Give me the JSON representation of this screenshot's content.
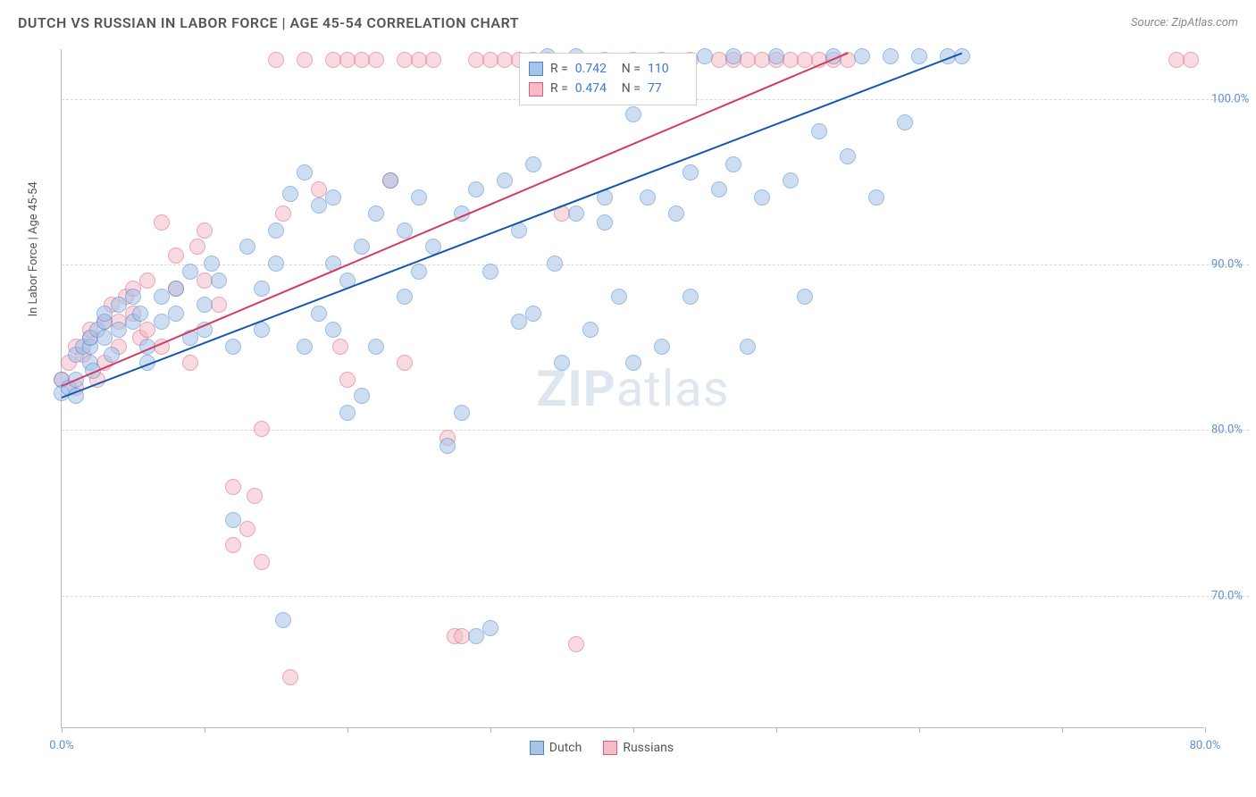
{
  "title": "DUTCH VS RUSSIAN IN LABOR FORCE | AGE 45-54 CORRELATION CHART",
  "source_label": "Source: ZipAtlas.com",
  "watermark_main": "ZIP",
  "watermark_sub": "atlas",
  "yaxis_title": "In Labor Force | Age 45-54",
  "chart": {
    "type": "scatter",
    "xlim": [
      0,
      80
    ],
    "ylim": [
      62,
      103
    ],
    "xticks": [
      0,
      10,
      20,
      30,
      40,
      50,
      60,
      70,
      80
    ],
    "xtick_labels": {
      "0": "0.0%",
      "80": "80.0%"
    },
    "yticks": [
      70,
      80,
      90,
      100
    ],
    "ytick_labels": {
      "70": "70.0%",
      "80": "80.0%",
      "90": "90.0%",
      "100": "100.0%"
    },
    "grid_color": "#d8d8d8",
    "axis_color": "#bbbbbb",
    "tick_label_color": "#5b8fd6",
    "background_color": "#ffffff",
    "point_radius": 9,
    "point_opacity": 0.55
  },
  "series": {
    "dutch": {
      "label": "Dutch",
      "fill_color": "#a6c4e8",
      "stroke_color": "#4f84c9",
      "line_color": "#1557b0",
      "R": "0.742",
      "N": "110",
      "trend": {
        "x1": 0,
        "y1": 82.0,
        "x2": 63,
        "y2": 102.8
      },
      "points": [
        [
          0,
          83
        ],
        [
          0,
          82.2
        ],
        [
          0.5,
          82.5
        ],
        [
          1,
          83
        ],
        [
          1,
          84.5
        ],
        [
          1,
          82
        ],
        [
          1.5,
          85
        ],
        [
          2,
          84
        ],
        [
          2,
          85
        ],
        [
          2,
          85.5
        ],
        [
          2.2,
          83.5
        ],
        [
          2.5,
          86
        ],
        [
          3,
          85.5
        ],
        [
          3,
          86.5
        ],
        [
          3,
          87
        ],
        [
          3.5,
          84.5
        ],
        [
          4,
          86
        ],
        [
          4,
          87.5
        ],
        [
          5,
          86.5
        ],
        [
          5,
          88
        ],
        [
          5.5,
          87
        ],
        [
          6,
          85
        ],
        [
          6,
          84
        ],
        [
          7,
          88
        ],
        [
          7,
          86.5
        ],
        [
          8,
          88.5
        ],
        [
          8,
          87
        ],
        [
          9,
          89.5
        ],
        [
          9,
          85.5
        ],
        [
          10,
          86
        ],
        [
          10,
          87.5
        ],
        [
          10.5,
          90
        ],
        [
          11,
          89
        ],
        [
          12,
          85
        ],
        [
          12,
          74.5
        ],
        [
          13,
          91
        ],
        [
          14,
          88.5
        ],
        [
          14,
          86
        ],
        [
          15,
          90
        ],
        [
          15,
          92
        ],
        [
          15.5,
          68.5
        ],
        [
          16,
          94.2
        ],
        [
          17,
          85
        ],
        [
          17,
          95.5
        ],
        [
          18,
          87
        ],
        [
          18,
          93.5
        ],
        [
          19,
          90
        ],
        [
          19,
          86
        ],
        [
          19,
          94
        ],
        [
          20,
          81
        ],
        [
          20,
          89
        ],
        [
          21,
          82
        ],
        [
          21,
          91
        ],
        [
          22,
          93
        ],
        [
          22,
          85
        ],
        [
          23,
          95
        ],
        [
          24,
          88
        ],
        [
          24,
          92
        ],
        [
          25,
          94
        ],
        [
          25,
          89.5
        ],
        [
          26,
          91
        ],
        [
          27,
          79
        ],
        [
          28,
          81
        ],
        [
          28,
          93
        ],
        [
          29,
          67.5
        ],
        [
          29,
          94.5
        ],
        [
          30,
          89.5
        ],
        [
          30,
          68
        ],
        [
          31,
          95
        ],
        [
          32,
          86.5
        ],
        [
          32,
          92
        ],
        [
          33,
          96
        ],
        [
          33,
          87
        ],
        [
          34,
          102.5
        ],
        [
          34.5,
          90
        ],
        [
          35,
          84
        ],
        [
          36,
          93
        ],
        [
          36,
          102.5
        ],
        [
          37,
          86
        ],
        [
          37,
          101
        ],
        [
          38,
          92.5
        ],
        [
          38,
          94
        ],
        [
          39,
          88
        ],
        [
          40,
          84
        ],
        [
          40,
          99
        ],
        [
          41,
          94
        ],
        [
          42,
          101
        ],
        [
          42,
          85
        ],
        [
          43,
          93
        ],
        [
          44,
          95.5
        ],
        [
          44,
          88
        ],
        [
          45,
          102.5
        ],
        [
          46,
          94.5
        ],
        [
          47,
          102.5
        ],
        [
          47,
          96
        ],
        [
          48,
          85
        ],
        [
          49,
          94
        ],
        [
          50,
          102.5
        ],
        [
          51,
          95
        ],
        [
          52,
          88
        ],
        [
          53,
          98
        ],
        [
          54,
          102.5
        ],
        [
          55,
          96.5
        ],
        [
          56,
          102.5
        ],
        [
          57,
          94
        ],
        [
          58,
          102.5
        ],
        [
          59,
          98.5
        ],
        [
          60,
          102.5
        ],
        [
          62,
          102.5
        ],
        [
          63,
          102.5
        ]
      ]
    },
    "russians": {
      "label": "Russians",
      "fill_color": "#f5bcc8",
      "stroke_color": "#d95f7a",
      "line_color": "#d43b63",
      "R": "0.474",
      "N": "77",
      "trend": {
        "x1": 0,
        "y1": 82.7,
        "x2": 55,
        "y2": 102.8
      },
      "points": [
        [
          0,
          83
        ],
        [
          0.5,
          84
        ],
        [
          1,
          82.5
        ],
        [
          1,
          85
        ],
        [
          1.5,
          84.5
        ],
        [
          2,
          85.5
        ],
        [
          2,
          86
        ],
        [
          2.5,
          83
        ],
        [
          3,
          86.5
        ],
        [
          3,
          84
        ],
        [
          3.5,
          87.5
        ],
        [
          4,
          85
        ],
        [
          4,
          86.5
        ],
        [
          4.5,
          88
        ],
        [
          5,
          87
        ],
        [
          5,
          88.5
        ],
        [
          5.5,
          85.5
        ],
        [
          6,
          89
        ],
        [
          6,
          86
        ],
        [
          7,
          92.5
        ],
        [
          7,
          85
        ],
        [
          8,
          88.5
        ],
        [
          8,
          90.5
        ],
        [
          9,
          84
        ],
        [
          9.5,
          91
        ],
        [
          10,
          89
        ],
        [
          10,
          92
        ],
        [
          11,
          87.5
        ],
        [
          12,
          73
        ],
        [
          12,
          76.5
        ],
        [
          13,
          74
        ],
        [
          13.5,
          76
        ],
        [
          14,
          72
        ],
        [
          14,
          80
        ],
        [
          15,
          102.3
        ],
        [
          15.5,
          93
        ],
        [
          16,
          65
        ],
        [
          17,
          102.3
        ],
        [
          18,
          94.5
        ],
        [
          19,
          102.3
        ],
        [
          19.5,
          85
        ],
        [
          20,
          102.3
        ],
        [
          20,
          83
        ],
        [
          21,
          102.3
        ],
        [
          22,
          102.3
        ],
        [
          23,
          95
        ],
        [
          24,
          102.3
        ],
        [
          24,
          84
        ],
        [
          25,
          102.3
        ],
        [
          26,
          102.3
        ],
        [
          27,
          79.5
        ],
        [
          27.5,
          67.5
        ],
        [
          28,
          67.5
        ],
        [
          29,
          102.3
        ],
        [
          30,
          102.3
        ],
        [
          31,
          102.3
        ],
        [
          32,
          102.3
        ],
        [
          33,
          102.3
        ],
        [
          34,
          102.3
        ],
        [
          35,
          93
        ],
        [
          36,
          67
        ],
        [
          38,
          102.3
        ],
        [
          40,
          102.3
        ],
        [
          42,
          102.3
        ],
        [
          44,
          102.3
        ],
        [
          46,
          102.3
        ],
        [
          47,
          102.3
        ],
        [
          48,
          102.3
        ],
        [
          49,
          102.3
        ],
        [
          50,
          102.3
        ],
        [
          51,
          102.3
        ],
        [
          52,
          102.3
        ],
        [
          53,
          102.3
        ],
        [
          54,
          102.3
        ],
        [
          55,
          102.3
        ],
        [
          78,
          102.3
        ],
        [
          79,
          102.3
        ]
      ]
    }
  },
  "legend_top": {
    "r_label": "R =",
    "n_label": "N ="
  },
  "legend_bottom": {
    "items": [
      "dutch",
      "russians"
    ]
  }
}
